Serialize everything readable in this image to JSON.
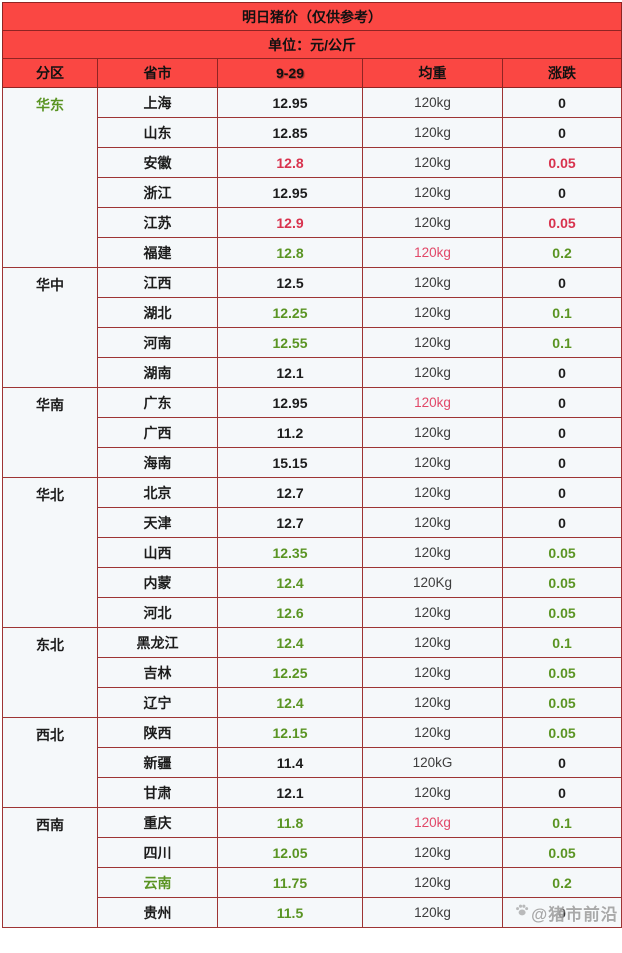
{
  "header": {
    "title": "明日猪价（仅供参考）",
    "unit_line": "单位：元/公斤"
  },
  "columns": {
    "region": "分区",
    "province": "省市",
    "date": "9-29",
    "weight": "均重",
    "change": "涨跌"
  },
  "colors": {
    "header_background": "#fa4743",
    "border": "#9e3434",
    "cell_background": "#f5f8fa",
    "region_cell_background": "#ffffff",
    "green_text": "#5a9423",
    "red_text": "#d8334e",
    "weight_red_text": "#e14868",
    "yellow_text": "#ffd83a",
    "black_text": "#1c1c1c"
  },
  "watermark": {
    "icon": "paw-icon",
    "text": "@猪市前沿"
  },
  "groups": [
    {
      "region": "华东",
      "region_color": "green",
      "rows": [
        {
          "province": "上海",
          "province_color": "black",
          "price": "12.95",
          "price_color": "black",
          "weight": "120kg",
          "weight_color": "gray",
          "change": "0",
          "change_color": "black"
        },
        {
          "province": "山东",
          "province_color": "black",
          "price": "12.85",
          "price_color": "black",
          "weight": "120kg",
          "weight_color": "gray",
          "change": "0",
          "change_color": "black"
        },
        {
          "province": "安徽",
          "province_color": "black",
          "price": "12.8",
          "price_color": "red",
          "weight": "120kg",
          "weight_color": "gray",
          "change": "0.05",
          "change_color": "red"
        },
        {
          "province": "浙江",
          "province_color": "black",
          "price": "12.95",
          "price_color": "black",
          "weight": "120kg",
          "weight_color": "gray",
          "change": "0",
          "change_color": "black"
        },
        {
          "province": "江苏",
          "province_color": "black",
          "price": "12.9",
          "price_color": "red",
          "weight": "120kg",
          "weight_color": "gray",
          "change": "0.05",
          "change_color": "red"
        },
        {
          "province": "福建",
          "province_color": "black",
          "price": "12.8",
          "price_color": "green",
          "weight": "120kg",
          "weight_color": "wred",
          "change": "0.2",
          "change_color": "green"
        }
      ]
    },
    {
      "region": "华中",
      "region_color": "black",
      "rows": [
        {
          "province": "江西",
          "province_color": "black",
          "price": "12.5",
          "price_color": "black",
          "weight": "120kg",
          "weight_color": "gray",
          "change": "0",
          "change_color": "black"
        },
        {
          "province": "湖北",
          "province_color": "black",
          "price": "12.25",
          "price_color": "green",
          "weight": "120kg",
          "weight_color": "gray",
          "change": "0.1",
          "change_color": "green"
        },
        {
          "province": "河南",
          "province_color": "black",
          "price": "12.55",
          "price_color": "green",
          "weight": "120kg",
          "weight_color": "gray",
          "change": "0.1",
          "change_color": "green"
        },
        {
          "province": "湖南",
          "province_color": "black",
          "price": "12.1",
          "price_color": "black",
          "weight": "120kg",
          "weight_color": "gray",
          "change": "0",
          "change_color": "black"
        }
      ]
    },
    {
      "region": "华南",
      "region_color": "black",
      "rows": [
        {
          "province": "广东",
          "province_color": "black",
          "price": "12.95",
          "price_color": "black",
          "weight": "120kg",
          "weight_color": "wred",
          "change": "0",
          "change_color": "black"
        },
        {
          "province": "广西",
          "province_color": "black",
          "price": "11.2",
          "price_color": "black",
          "weight": "120kg",
          "weight_color": "gray",
          "change": "0",
          "change_color": "black"
        },
        {
          "province": "海南",
          "province_color": "black",
          "price": "15.15",
          "price_color": "black",
          "weight": "120kg",
          "weight_color": "gray",
          "change": "0",
          "change_color": "black"
        }
      ]
    },
    {
      "region": "华北",
      "region_color": "black",
      "rows": [
        {
          "province": "北京",
          "province_color": "black",
          "price": "12.7",
          "price_color": "black",
          "weight": "120kg",
          "weight_color": "gray",
          "change": "0",
          "change_color": "black"
        },
        {
          "province": "天津",
          "province_color": "black",
          "price": "12.7",
          "price_color": "black",
          "weight": "120kg",
          "weight_color": "gray",
          "change": "0",
          "change_color": "black"
        },
        {
          "province": "山西",
          "province_color": "black",
          "price": "12.35",
          "price_color": "green",
          "weight": "120kg",
          "weight_color": "gray",
          "change": "0.05",
          "change_color": "green"
        },
        {
          "province": "内蒙",
          "province_color": "black",
          "price": "12.4",
          "price_color": "green",
          "weight": "120Kg",
          "weight_color": "gray",
          "change": "0.05",
          "change_color": "green"
        },
        {
          "province": "河北",
          "province_color": "black",
          "price": "12.6",
          "price_color": "green",
          "weight": "120kg",
          "weight_color": "gray",
          "change": "0.05",
          "change_color": "green"
        }
      ]
    },
    {
      "region": "东北",
      "region_color": "black",
      "rows": [
        {
          "province": "黑龙江",
          "province_color": "black",
          "price": "12.4",
          "price_color": "green",
          "weight": "120kg",
          "weight_color": "gray",
          "change": "0.1",
          "change_color": "green"
        },
        {
          "province": "吉林",
          "province_color": "black",
          "price": "12.25",
          "price_color": "green",
          "weight": "120kg",
          "weight_color": "gray",
          "change": "0.05",
          "change_color": "green"
        },
        {
          "province": "辽宁",
          "province_color": "black",
          "price": "12.4",
          "price_color": "green",
          "weight": "120kg",
          "weight_color": "gray",
          "change": "0.05",
          "change_color": "green"
        }
      ]
    },
    {
      "region": "西北",
      "region_color": "black",
      "rows": [
        {
          "province": "陕西",
          "province_color": "black",
          "price": "12.15",
          "price_color": "green",
          "weight": "120kg",
          "weight_color": "gray",
          "change": "0.05",
          "change_color": "green"
        },
        {
          "province": "新疆",
          "province_color": "black",
          "price": "11.4",
          "price_color": "black",
          "weight": "120kG",
          "weight_color": "gray",
          "change": "0",
          "change_color": "black"
        },
        {
          "province": "甘肃",
          "province_color": "black",
          "price": "12.1",
          "price_color": "black",
          "weight": "120kg",
          "weight_color": "gray",
          "change": "0",
          "change_color": "black"
        }
      ]
    },
    {
      "region": "西南",
      "region_color": "black",
      "rows": [
        {
          "province": "重庆",
          "province_color": "black",
          "price": "11.8",
          "price_color": "green",
          "weight": "120kg",
          "weight_color": "wred",
          "change": "0.1",
          "change_color": "green"
        },
        {
          "province": "四川",
          "province_color": "black",
          "price": "12.05",
          "price_color": "green",
          "weight": "120kg",
          "weight_color": "gray",
          "change": "0.05",
          "change_color": "green"
        },
        {
          "province": "云南",
          "province_color": "green",
          "price": "11.75",
          "price_color": "green",
          "weight": "120kg",
          "weight_color": "gray",
          "change": "0.2",
          "change_color": "green"
        },
        {
          "province": "贵州",
          "province_color": "black",
          "price": "11.5",
          "price_color": "green",
          "weight": "120kg",
          "weight_color": "gray",
          "change": "0",
          "change_color": "black",
          "watermark": true
        }
      ]
    }
  ]
}
